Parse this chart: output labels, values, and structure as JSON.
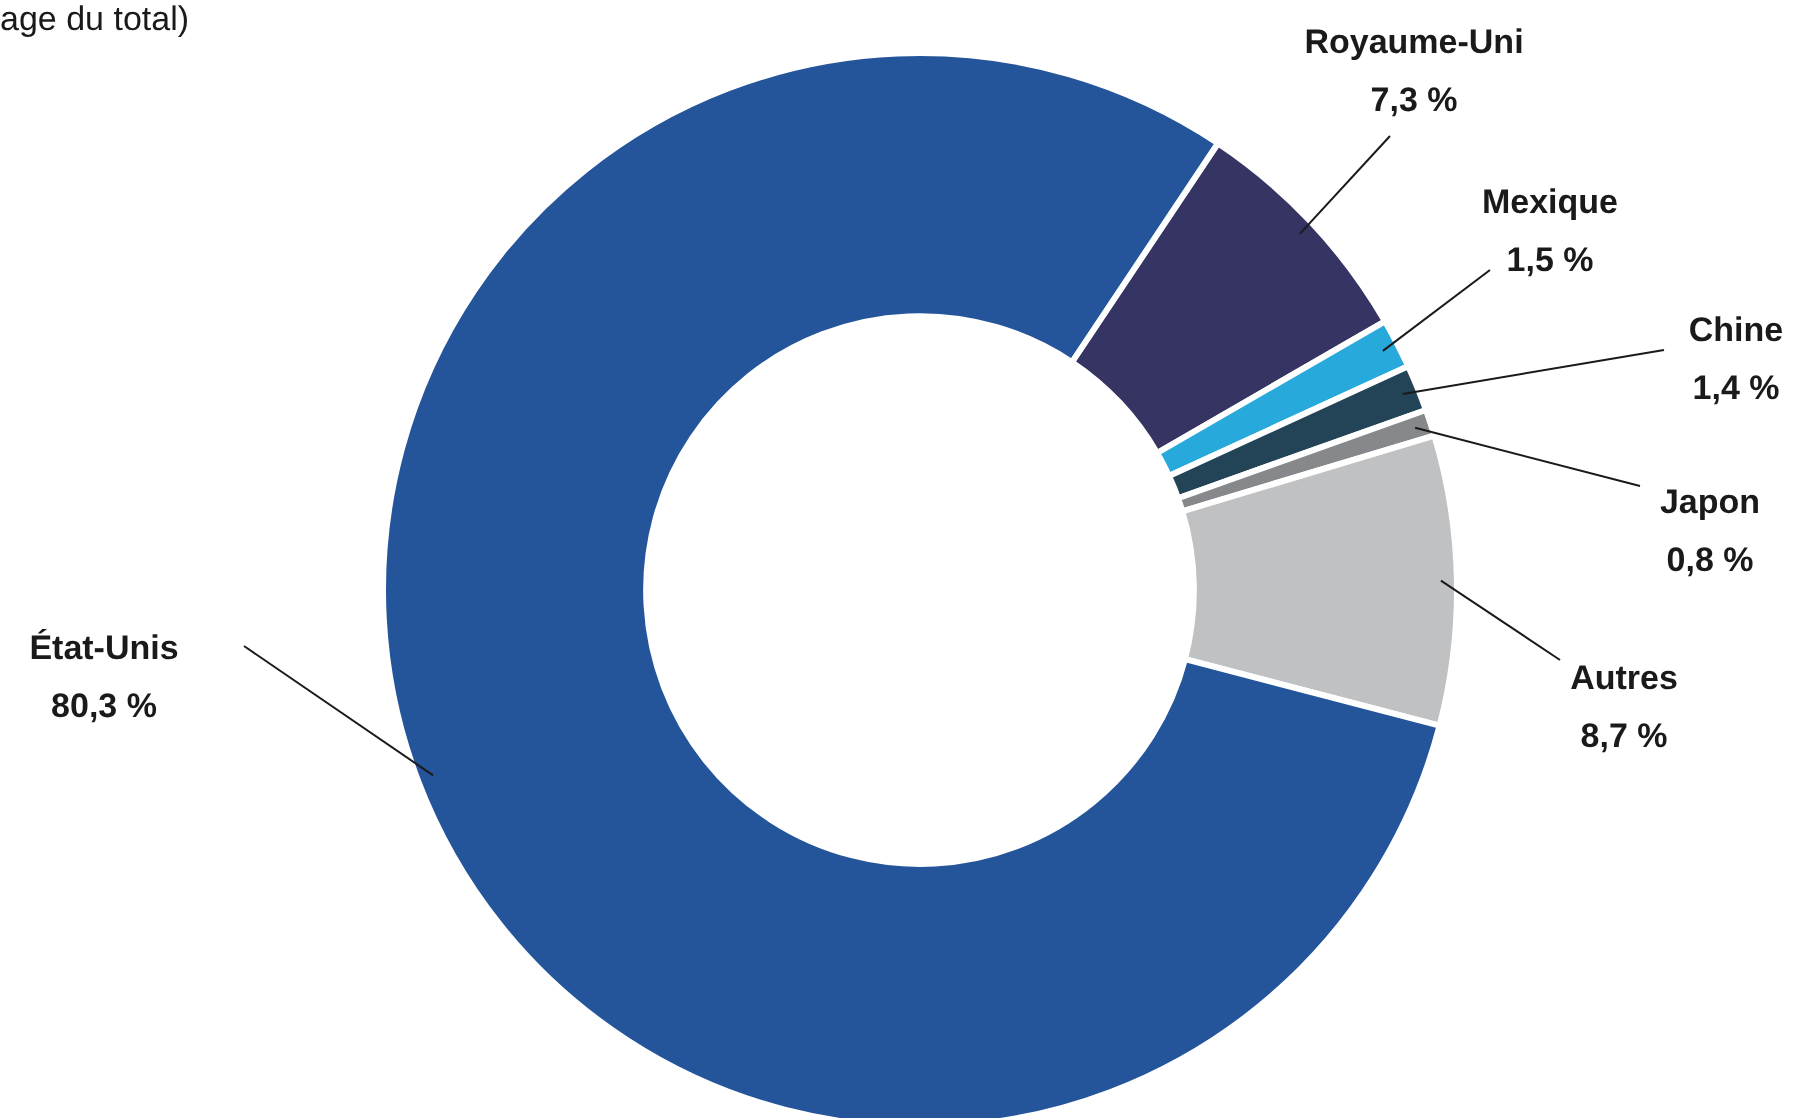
{
  "chart_data": {
    "type": "donut",
    "title": "age du total)",
    "categories": [
      "Royaume-Uni",
      "Mexique",
      "Chine",
      "Japon",
      "Autres",
      "État-Unis"
    ],
    "values": [
      7.3,
      1.5,
      1.4,
      0.8,
      8.7,
      80.3
    ],
    "value_labels": [
      "7,3 %",
      "1,5 %",
      "1,4 %",
      "0,8 %",
      "8,7 %",
      "80,3 %"
    ],
    "colors": [
      "#363463",
      "#28a9dc",
      "#234457",
      "#87888c",
      "#c0c1c3",
      "#24559b"
    ],
    "legend": false
  }
}
